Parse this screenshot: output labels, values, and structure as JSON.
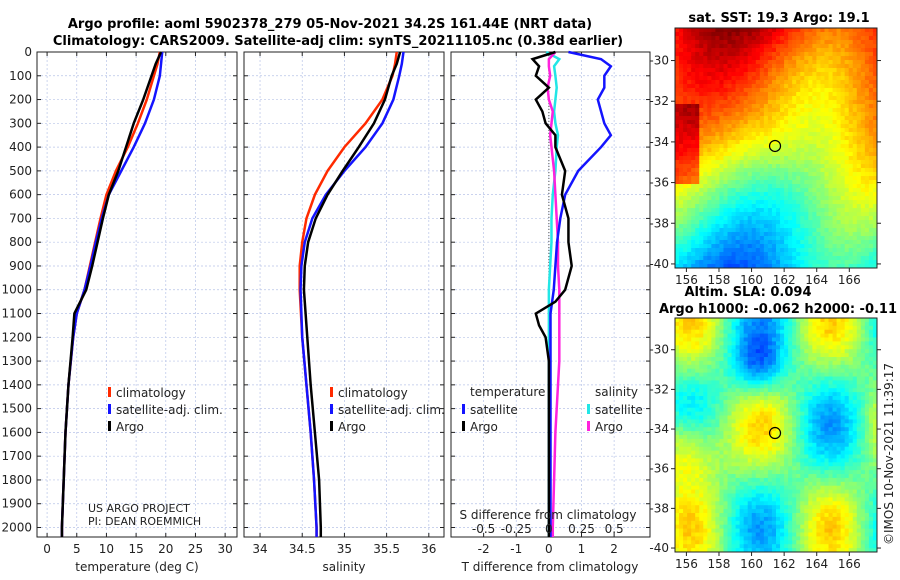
{
  "title_line1": "Argo profile: aoml 5902378_279 05-Nov-2021 34.2S 161.44E (NRT data)",
  "title_line2": "Climatology: CARS2009. Satellite-adj clim: synTS_20211105.nc (0.38d earlier)",
  "colors": {
    "climatology": "#ff2a00",
    "satellite": "#1414ff",
    "argo": "#000000",
    "sal_satellite": "#22e6e6",
    "sal_argo": "#ff22dd",
    "grid": "#b8c4e8"
  },
  "chart_data": [
    {
      "type": "line",
      "xlabel": "temperature (deg C)",
      "ylabel": "",
      "xlim": [
        -1.7,
        32
      ],
      "ylim": [
        2040,
        0
      ],
      "xticks": [
        0,
        5,
        10,
        15,
        20,
        25,
        30
      ],
      "yticks": [
        0,
        100,
        200,
        300,
        400,
        500,
        600,
        700,
        800,
        900,
        1000,
        1100,
        1200,
        1300,
        1400,
        1500,
        1600,
        1700,
        1800,
        1900,
        2000
      ],
      "legend": [
        "climatology",
        "satellite-adj. clim.",
        "Argo"
      ],
      "note": [
        "US ARGO PROJECT",
        "PI: DEAN ROEMMICH"
      ],
      "depth": [
        0,
        50,
        100,
        200,
        300,
        400,
        500,
        600,
        700,
        800,
        900,
        1000,
        1100,
        1200,
        1400,
        1600,
        1800,
        2000,
        2040
      ],
      "series": [
        {
          "name": "climatology",
          "values": [
            19,
            18.6,
            18,
            16.8,
            15.3,
            13.6,
            11.6,
            10,
            9,
            8.1,
            7.2,
            6.3,
            5,
            4.4,
            3.6,
            3.1,
            2.8,
            2.5,
            2.5
          ]
        },
        {
          "name": "satellite-adj. clim.",
          "values": [
            19.4,
            19.2,
            19,
            18,
            16.5,
            14.6,
            12.5,
            10.4,
            9.2,
            8.2,
            7.3,
            6.3,
            5,
            4.4,
            3.6,
            3.1,
            2.8,
            2.5,
            2.5
          ]
        },
        {
          "name": "Argo",
          "values": [
            19.2,
            18.3,
            17.6,
            16.2,
            14.6,
            13.3,
            12,
            10.4,
            9.4,
            8.5,
            7.6,
            6.6,
            4.6,
            4.3,
            3.6,
            3.1,
            2.8,
            2.5,
            2.5
          ]
        }
      ]
    },
    {
      "type": "line",
      "xlabel": "salinity",
      "xlim": [
        33.81,
        36.18
      ],
      "ylim": [
        2040,
        0
      ],
      "xticks": [
        34,
        34.5,
        35,
        35.5,
        36
      ],
      "xticklabels": [
        "34",
        "34.5",
        "35",
        "35.5",
        "36"
      ],
      "legend": [
        "climatology",
        "satellite-adj. clim.",
        "Argo"
      ],
      "depth": [
        0,
        50,
        100,
        200,
        300,
        400,
        500,
        600,
        700,
        800,
        900,
        1000,
        1200,
        1400,
        1600,
        1800,
        2000,
        2040
      ],
      "series": [
        {
          "name": "climatology",
          "values": [
            35.62,
            35.6,
            35.57,
            35.45,
            35.25,
            35.0,
            34.8,
            34.65,
            34.55,
            34.5,
            34.47,
            34.47,
            34.5,
            34.55,
            34.6,
            34.64,
            34.67,
            34.67
          ]
        },
        {
          "name": "satellite-adj. clim.",
          "values": [
            35.7,
            35.68,
            35.65,
            35.58,
            35.45,
            35.25,
            35.0,
            34.78,
            34.62,
            34.53,
            34.49,
            34.48,
            34.5,
            34.55,
            34.6,
            34.64,
            34.67,
            34.67
          ]
        },
        {
          "name": "Argo",
          "values": [
            35.66,
            35.62,
            35.56,
            35.48,
            35.35,
            35.17,
            34.98,
            34.8,
            34.66,
            34.57,
            34.53,
            34.52,
            34.56,
            34.6,
            34.65,
            34.7,
            34.72,
            34.72
          ]
        }
      ]
    },
    {
      "type": "line",
      "xlabel": "T difference from climatology",
      "xlabel2": "S difference from climatology",
      "xlim": [
        -3,
        3.1
      ],
      "ylim": [
        2040,
        0
      ],
      "xticks": [
        -2,
        -1,
        0,
        1,
        2
      ],
      "xticks2": [
        -0.5,
        -0.25,
        0,
        0.25,
        0.5
      ],
      "xticklabels2": [
        "-0.5",
        "-0.25",
        "0",
        "0.25",
        "0.5"
      ],
      "legend_t_title": "temperature",
      "legend_s_title": "salinity",
      "legend_t": [
        "satellite",
        "Argo"
      ],
      "legend_s": [
        "satellite",
        "Argo"
      ],
      "depth": [
        0,
        30,
        60,
        100,
        150,
        200,
        250,
        300,
        350,
        400,
        500,
        600,
        700,
        800,
        900,
        1000,
        1050,
        1100,
        1150,
        1200,
        1300,
        1400,
        1500,
        1600,
        1800,
        2000,
        2040
      ],
      "series": [
        {
          "name": "T satellite",
          "values": [
            0.6,
            1.6,
            1.9,
            1.7,
            1.7,
            1.5,
            1.6,
            1.7,
            1.9,
            1.6,
            0.9,
            0.5,
            0.35,
            0.25,
            0.2,
            0.15,
            0.1,
            0.05,
            0.05,
            0.05,
            0.05,
            0.05,
            0.05,
            0.05,
            0.05,
            0.05,
            0.05
          ]
        },
        {
          "name": "T Argo",
          "values": [
            0.2,
            -0.5,
            -0.3,
            -0.4,
            0,
            -0.4,
            -0.2,
            -0.1,
            0.2,
            0.2,
            0.5,
            0.4,
            0.6,
            0.6,
            0.7,
            0.5,
            0.2,
            -0.4,
            -0.3,
            -0.1,
            0,
            0,
            0,
            0,
            0,
            0,
            0
          ]
        },
        {
          "name": "S satellite",
          "values": [
            -0.02,
            0.08,
            0.04,
            0.05,
            0.06,
            0.05,
            0.04,
            0.05,
            0.07,
            0.06,
            0.05,
            0.03,
            0.02,
            0.02,
            0.01,
            0,
            0,
            0,
            0,
            0,
            0,
            0,
            0,
            0,
            0,
            0,
            0
          ]
        },
        {
          "name": "S Argo",
          "values": [
            0.05,
            0.0,
            0.0,
            0.01,
            -0.01,
            0.0,
            0.03,
            0.02,
            0.01,
            0.02,
            0.04,
            0.05,
            0.06,
            0.07,
            0.07,
            0.08,
            0.08,
            0.08,
            0.08,
            0.08,
            0.08,
            0.07,
            0.06,
            0.05,
            0.04,
            0.03,
            0.03
          ]
        }
      ]
    },
    {
      "type": "heatmap",
      "title": "sat. SST: 19.3 Argo: 19.1",
      "xlim": [
        155.3,
        167.7
      ],
      "ylim": [
        -40.2,
        -28.4
      ],
      "xticks": [
        156,
        158,
        160,
        162,
        164,
        166
      ],
      "yticks": [
        -30,
        -32,
        -34,
        -36,
        -38,
        -40
      ],
      "marker": [
        161.44,
        -34.2
      ]
    },
    {
      "type": "heatmap",
      "title": "Altim. SLA: 0.094",
      "subtitle": "Argo h1000: -0.062 h2000: -0.11",
      "xlim": [
        155.3,
        167.7
      ],
      "ylim": [
        -40.2,
        -28.4
      ],
      "xticks": [
        156,
        158,
        160,
        162,
        164,
        166
      ],
      "yticks": [
        -30,
        -32,
        -34,
        -36,
        -38,
        -40
      ],
      "marker": [
        161.44,
        -34.2
      ]
    }
  ],
  "stamp": "©IMOS 10-Nov-2021 11:39:17"
}
